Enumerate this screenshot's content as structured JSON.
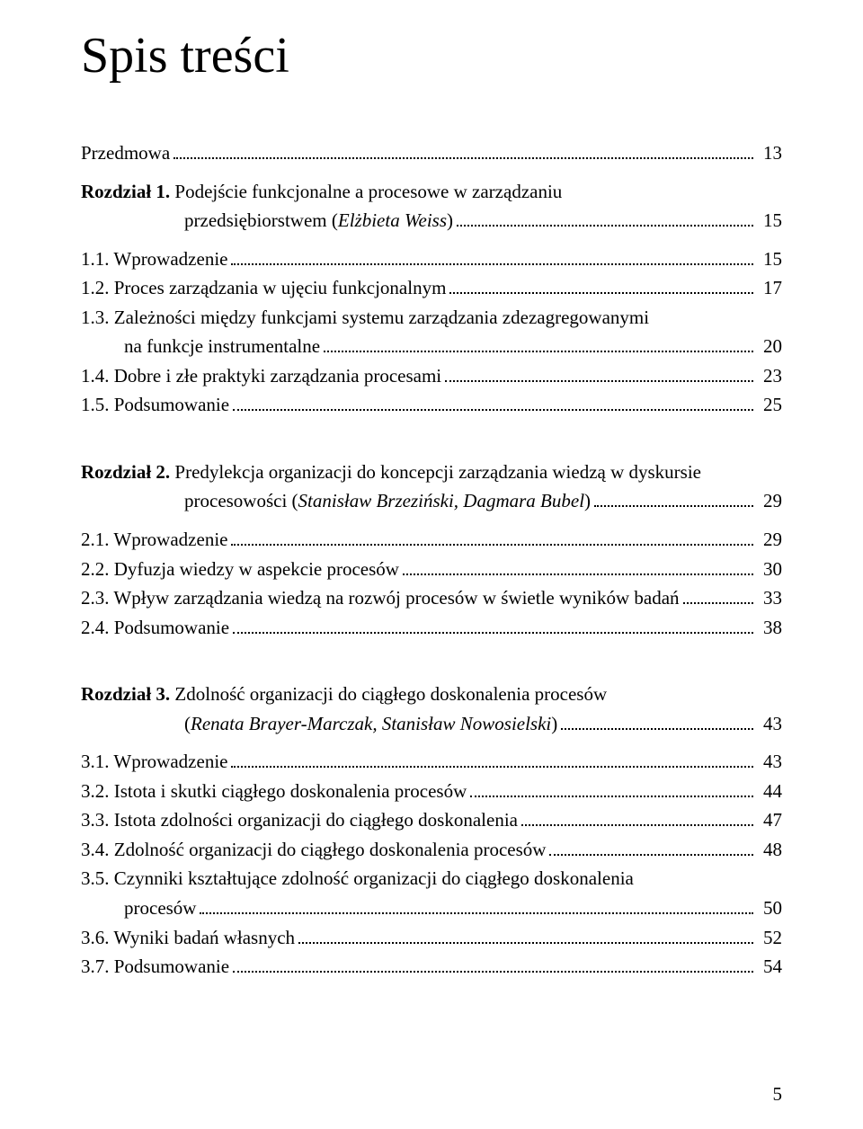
{
  "title": "Spis treści",
  "page_number": "5",
  "entries": [
    {
      "type": "line",
      "label_bold": "",
      "label_plain": "Przedmowa",
      "label_italic": "",
      "page": "13",
      "indent": 0
    },
    {
      "type": "gap-small"
    },
    {
      "type": "line",
      "label_bold": "Rozdział 1. ",
      "label_plain": "Podejście funkcjonalne a procesowe w zarządzaniu",
      "label_italic": "",
      "page": "",
      "indent": 0,
      "no_leader": true
    },
    {
      "type": "line",
      "label_bold": "",
      "label_plain": "przedsiębiorstwem (",
      "label_italic": "Elżbieta Weiss",
      "label_plain2": ")",
      "page": "15",
      "indent": 0,
      "cont_chapter": true
    },
    {
      "type": "gap-small"
    },
    {
      "type": "line",
      "label_bold": "",
      "label_plain": "1.1. Wprowadzenie",
      "label_italic": "",
      "page": "15",
      "indent": 0
    },
    {
      "type": "line",
      "label_bold": "",
      "label_plain": "1.2. Proces zarządzania w ujęciu funkcjonalnym",
      "label_italic": "",
      "page": "17",
      "indent": 0
    },
    {
      "type": "line",
      "label_bold": "",
      "label_plain": "1.3. Zależności między funkcjami systemu zarządzania zdezagregowanymi",
      "label_italic": "",
      "page": "",
      "indent": 0,
      "no_leader": true
    },
    {
      "type": "line",
      "label_bold": "",
      "label_plain": "na funkcje instrumentalne",
      "label_italic": "",
      "page": "20",
      "indent": 1
    },
    {
      "type": "line",
      "label_bold": "",
      "label_plain": "1.4. Dobre i złe praktyki zarządzania procesami",
      "label_italic": "",
      "page": "23",
      "indent": 0
    },
    {
      "type": "line",
      "label_bold": "",
      "label_plain": "1.5. Podsumowanie",
      "label_italic": "",
      "page": "25",
      "indent": 0
    },
    {
      "type": "gap-big"
    },
    {
      "type": "line",
      "label_bold": "Rozdział 2. ",
      "label_plain": "Predylekcja organizacji do koncepcji zarządzania wiedzą w dyskursie",
      "label_italic": "",
      "page": "",
      "indent": 0,
      "no_leader": true
    },
    {
      "type": "line",
      "label_bold": "",
      "label_plain": "procesowości (",
      "label_italic": "Stanisław Brzeziński, Dagmara Bubel",
      "label_plain2": ")",
      "page": "29",
      "indent": 0,
      "cont_chapter": true
    },
    {
      "type": "gap-small"
    },
    {
      "type": "line",
      "label_bold": "",
      "label_plain": "2.1. Wprowadzenie",
      "label_italic": "",
      "page": "29",
      "indent": 0
    },
    {
      "type": "line",
      "label_bold": "",
      "label_plain": "2.2. Dyfuzja wiedzy w aspekcie procesów",
      "label_italic": "",
      "page": "30",
      "indent": 0
    },
    {
      "type": "line",
      "label_bold": "",
      "label_plain": "2.3. Wpływ zarządzania wiedzą na rozwój procesów w świetle wyników badań",
      "label_italic": "",
      "page": "33",
      "indent": 0,
      "tight": true
    },
    {
      "type": "line",
      "label_bold": "",
      "label_plain": "2.4. Podsumowanie",
      "label_italic": "",
      "page": "38",
      "indent": 0
    },
    {
      "type": "gap-big"
    },
    {
      "type": "line",
      "label_bold": "Rozdział 3. ",
      "label_plain": "Zdolność organizacji do ciągłego doskonalenia procesów",
      "label_italic": "",
      "page": "",
      "indent": 0,
      "no_leader": true
    },
    {
      "type": "line",
      "label_bold": "",
      "label_plain": "(",
      "label_italic": "Renata Brayer-Marczak, Stanisław Nowosielski",
      "label_plain2": ")",
      "page": "43",
      "indent": 0,
      "cont_chapter": true
    },
    {
      "type": "gap-small"
    },
    {
      "type": "line",
      "label_bold": "",
      "label_plain": "3.1. Wprowadzenie",
      "label_italic": "",
      "page": "43",
      "indent": 0
    },
    {
      "type": "line",
      "label_bold": "",
      "label_plain": "3.2. Istota i skutki ciągłego doskonalenia procesów",
      "label_italic": "",
      "page": "44",
      "indent": 0
    },
    {
      "type": "line",
      "label_bold": "",
      "label_plain": "3.3. Istota zdolności organizacji do ciągłego doskonalenia",
      "label_italic": "",
      "page": "47",
      "indent": 0
    },
    {
      "type": "line",
      "label_bold": "",
      "label_plain": "3.4. Zdolność organizacji do ciągłego doskonalenia procesów",
      "label_italic": "",
      "page": "48",
      "indent": 0
    },
    {
      "type": "line",
      "label_bold": "",
      "label_plain": "3.5. Czynniki kształtujące zdolność organizacji do ciągłego doskonalenia",
      "label_italic": "",
      "page": "",
      "indent": 0,
      "no_leader": true
    },
    {
      "type": "line",
      "label_bold": "",
      "label_plain": "procesów",
      "label_italic": "",
      "page": "50",
      "indent": 1
    },
    {
      "type": "line",
      "label_bold": "",
      "label_plain": "3.6. Wyniki badań własnych",
      "label_italic": "",
      "page": "52",
      "indent": 0
    },
    {
      "type": "line",
      "label_bold": "",
      "label_plain": "3.7. Podsumowanie",
      "label_italic": "",
      "page": "54",
      "indent": 0
    }
  ]
}
